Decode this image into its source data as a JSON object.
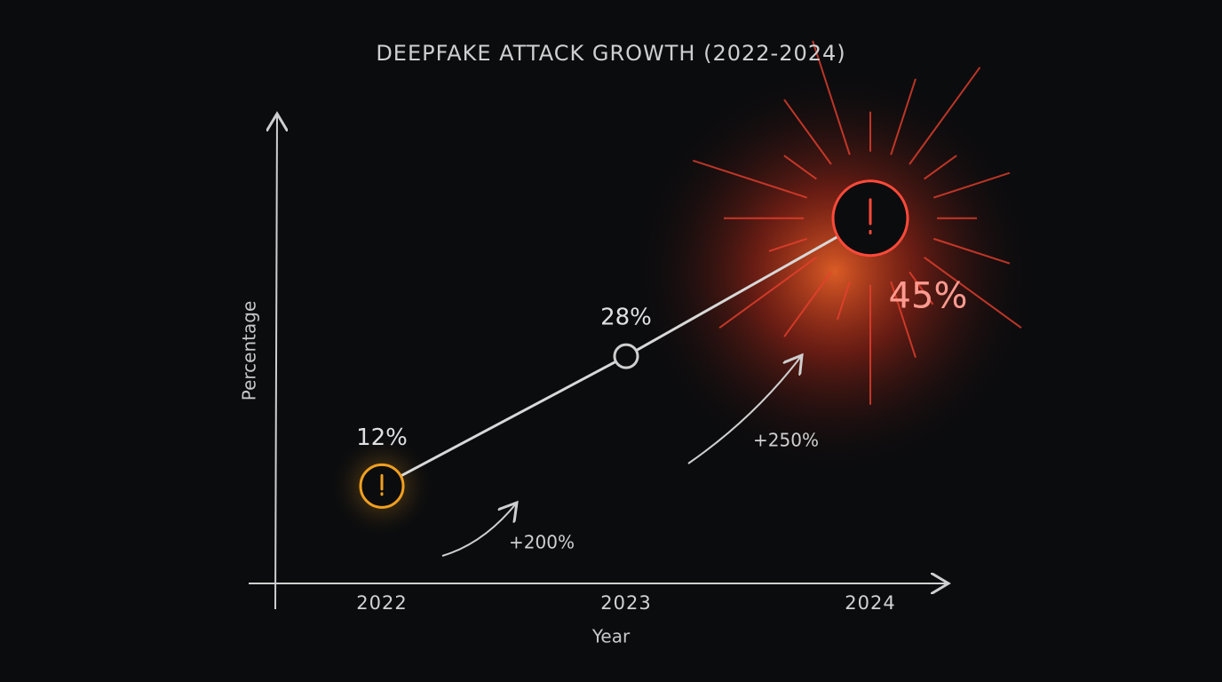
{
  "chart_data": {
    "type": "line",
    "title": "DEEPFAKE ATTACK GROWTH (2022-2024)",
    "x_label": "Year",
    "y_label": "Percentage",
    "categories": [
      "2022",
      "2023",
      "2024"
    ],
    "values": [
      12,
      28,
      45
    ],
    "value_labels": [
      "12%",
      "28%",
      "45%"
    ],
    "color": "#d8d8d8",
    "point_colors": [
      "#f0a020",
      "#cfcfcf",
      "#ff4a3a"
    ],
    "ylim": [
      0,
      50
    ],
    "annotations": [
      "+200%",
      "+250%"
    ]
  }
}
